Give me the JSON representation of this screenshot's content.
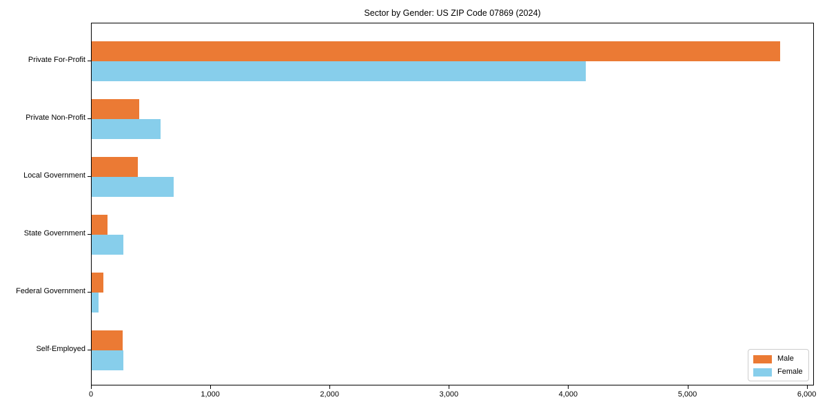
{
  "title": "Sector by Gender: US ZIP Code 07869 (2024)",
  "colors": {
    "male": "#eb7a34",
    "female": "#87ceeb",
    "axis": "#000000",
    "legend_border": "#cccccc",
    "background": "#ffffff"
  },
  "chart_data": {
    "type": "bar",
    "orientation": "horizontal",
    "title": "Sector by Gender: US ZIP Code 07869 (2024)",
    "categories": [
      "Private For-Profit",
      "Private Non-Profit",
      "Local Government",
      "State Government",
      "Federal Government",
      "Self-Employed"
    ],
    "series": [
      {
        "name": "Male",
        "color": "#eb7a34",
        "values": [
          5770,
          400,
          385,
          130,
          100,
          260
        ]
      },
      {
        "name": "Female",
        "color": "#87ceeb",
        "values": [
          4140,
          575,
          690,
          265,
          60,
          265
        ]
      }
    ],
    "xlabel": "",
    "ylabel": "",
    "xlim": [
      0,
      6060
    ],
    "x_ticks": [
      0,
      1000,
      2000,
      3000,
      4000,
      5000,
      6000
    ],
    "x_tick_labels": [
      "0",
      "1,000",
      "2,000",
      "3,000",
      "4,000",
      "5,000",
      "6,000"
    ],
    "grid": false,
    "legend": {
      "position": "lower right",
      "entries": [
        "Male",
        "Female"
      ]
    }
  }
}
